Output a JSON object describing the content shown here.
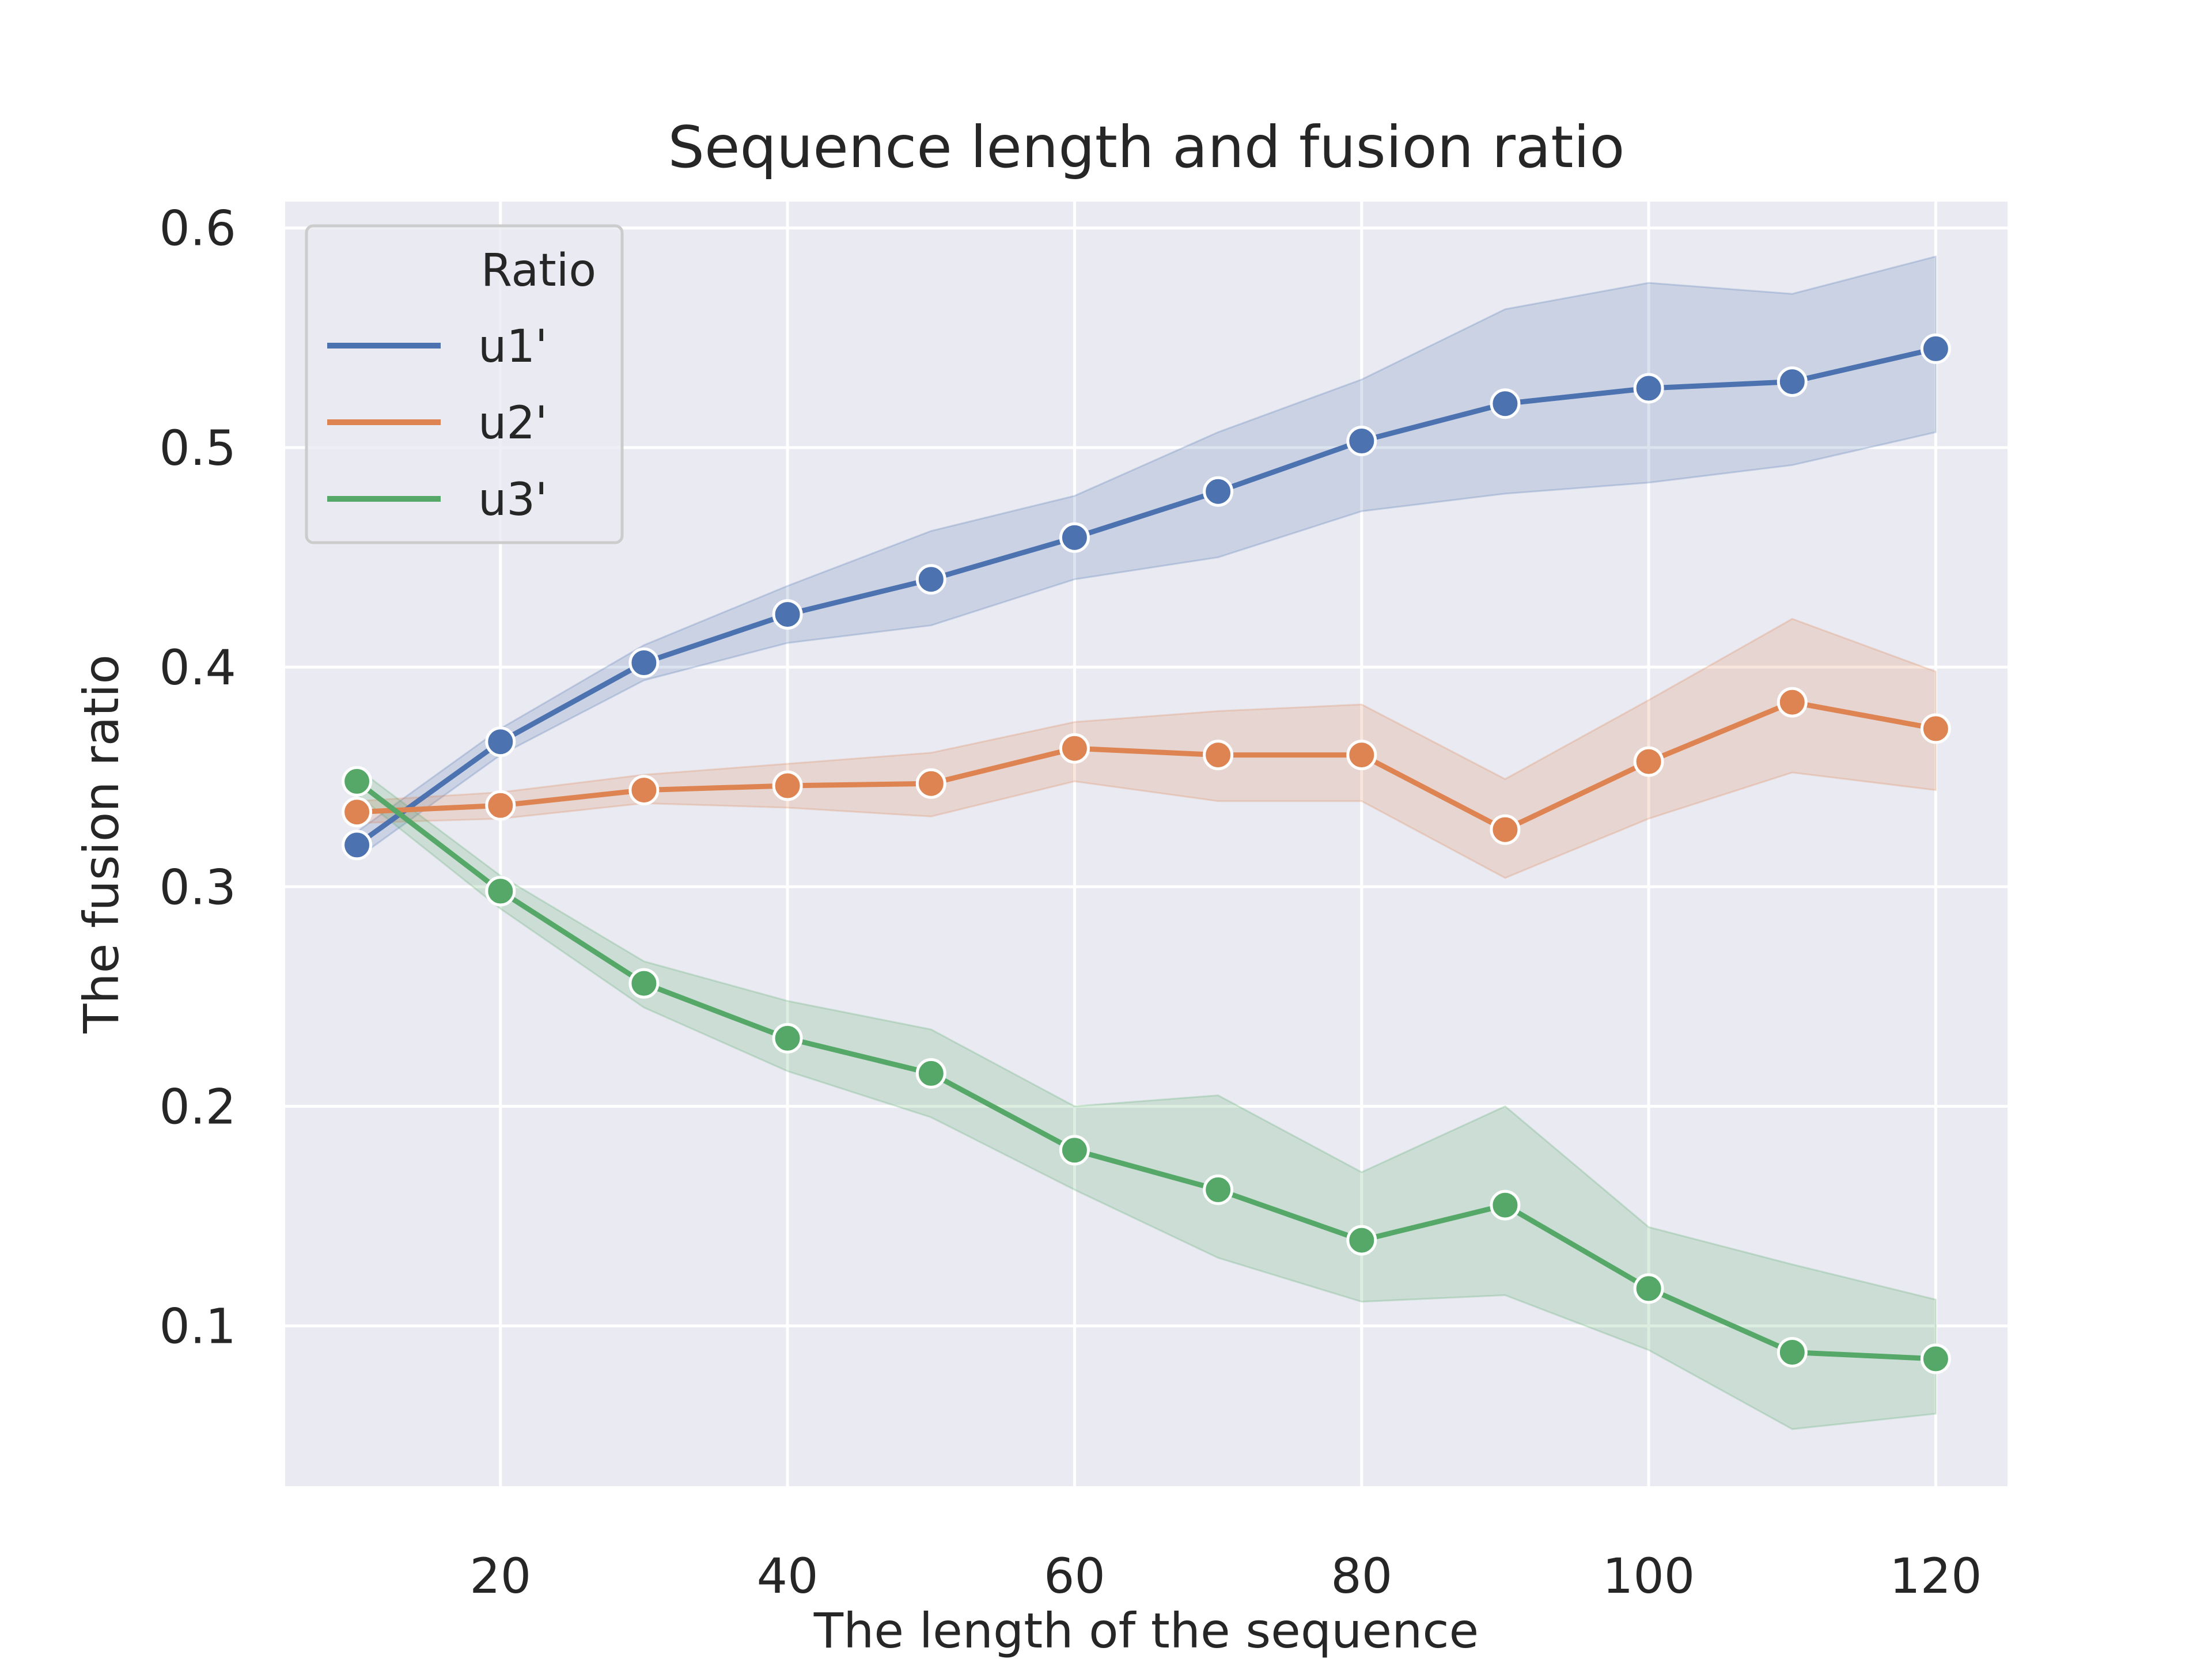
{
  "chart_data": {
    "type": "line",
    "title": "Sequence length and fusion ratio",
    "xlabel": "The length of the sequence",
    "ylabel": "The fusion ratio",
    "xlim": [
      5,
      125
    ],
    "ylim": [
      0.027,
      0.612
    ],
    "xticks": [
      20,
      40,
      60,
      80,
      100,
      120
    ],
    "xtick_labels": [
      "20",
      "40",
      "60",
      "80",
      "100",
      "120"
    ],
    "yticks": [
      0.1,
      0.2,
      0.3,
      0.4,
      0.5,
      0.6
    ],
    "ytick_labels": [
      "0.1",
      "0.2",
      "0.3",
      "0.4",
      "0.5",
      "0.6"
    ],
    "grid": true,
    "legend": {
      "title": "Ratio",
      "placement": "upper left"
    },
    "background_color": "#eaeaf2",
    "grid_color": "#ffffff",
    "x": [
      10,
      20,
      30,
      40,
      50,
      60,
      70,
      80,
      90,
      100,
      110,
      120
    ],
    "series": [
      {
        "name": "u1'",
        "color": "#4c72b0",
        "values": [
          0.319,
          0.366,
          0.402,
          0.424,
          0.44,
          0.459,
          0.48,
          0.503,
          0.52,
          0.527,
          0.53,
          0.545
        ],
        "lower": [
          0.313,
          0.36,
          0.394,
          0.411,
          0.419,
          0.44,
          0.45,
          0.471,
          0.479,
          0.484,
          0.492,
          0.507
        ],
        "upper": [
          0.325,
          0.372,
          0.41,
          0.437,
          0.462,
          0.478,
          0.507,
          0.531,
          0.563,
          0.575,
          0.57,
          0.587
        ]
      },
      {
        "name": "u2'",
        "color": "#dd8452",
        "values": [
          0.334,
          0.337,
          0.344,
          0.346,
          0.347,
          0.363,
          0.36,
          0.36,
          0.326,
          0.357,
          0.384,
          0.372
        ],
        "lower": [
          0.329,
          0.331,
          0.338,
          0.336,
          0.332,
          0.348,
          0.339,
          0.339,
          0.304,
          0.331,
          0.352,
          0.344
        ],
        "upper": [
          0.339,
          0.343,
          0.351,
          0.356,
          0.361,
          0.375,
          0.38,
          0.383,
          0.349,
          0.385,
          0.422,
          0.398
        ]
      },
      {
        "name": "u3'",
        "color": "#55a868",
        "values": [
          0.348,
          0.298,
          0.256,
          0.231,
          0.215,
          0.18,
          0.162,
          0.139,
          0.155,
          0.117,
          0.088,
          0.085
        ],
        "lower": [
          0.342,
          0.29,
          0.245,
          0.216,
          0.195,
          0.162,
          0.131,
          0.111,
          0.114,
          0.089,
          0.053,
          0.06
        ],
        "upper": [
          0.354,
          0.305,
          0.266,
          0.248,
          0.235,
          0.2,
          0.205,
          0.17,
          0.2,
          0.145,
          0.128,
          0.112
        ]
      }
    ]
  }
}
